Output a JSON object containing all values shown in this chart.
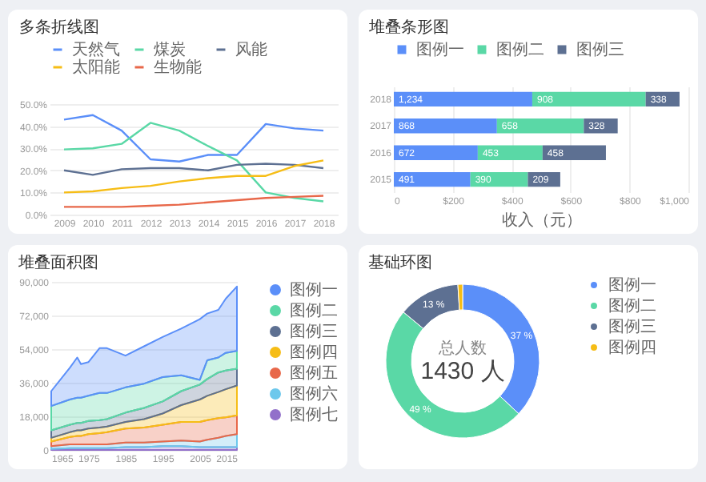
{
  "chart_data": [
    {
      "type": "line",
      "title": "多条折线图",
      "categories": [
        "2009",
        "2010",
        "2011",
        "2012",
        "2013",
        "2014",
        "2015",
        "2016",
        "2017",
        "2018"
      ],
      "series": [
        {
          "name": "天然气",
          "color": "#5b8ff9",
          "values": [
            43,
            45,
            38,
            25,
            24,
            27,
            27,
            41,
            39,
            38
          ]
        },
        {
          "name": "煤炭",
          "color": "#5ad8a6",
          "values": [
            29.5,
            30,
            32,
            41.5,
            38,
            31,
            24.5,
            10,
            7.5,
            6
          ]
        },
        {
          "name": "风能",
          "color": "#5d7092",
          "values": [
            20,
            18,
            20.5,
            21,
            21,
            20,
            22.5,
            23,
            22.5,
            21
          ]
        },
        {
          "name": "太阳能",
          "color": "#f6bd16",
          "values": [
            10,
            10.5,
            12,
            13,
            15,
            16.5,
            17.5,
            17.5,
            22,
            24.5
          ]
        },
        {
          "name": "生物能",
          "color": "#e8684a",
          "values": [
            3.5,
            3.5,
            3.5,
            4,
            4.5,
            5.5,
            6.5,
            7.5,
            8,
            8.5
          ]
        }
      ],
      "ylim": [
        0,
        50
      ],
      "yticks": [
        {
          "value": 0,
          "label": "0.0%"
        },
        {
          "value": 10,
          "label": "10.0%"
        },
        {
          "value": 20,
          "label": "20.0%"
        },
        {
          "value": 30,
          "label": "30.0%"
        },
        {
          "value": 40,
          "label": "40.0%"
        },
        {
          "value": 50,
          "label": "50.0%"
        }
      ],
      "grid": "y",
      "legend": "top",
      "marker": "none",
      "line_style": "solid"
    },
    {
      "type": "bar",
      "title": "堆叠条形图",
      "orientation": "horizontal",
      "stacked": true,
      "categories": [
        "2018",
        "2017",
        "2016",
        "2015"
      ],
      "series": [
        {
          "name": "图例一",
          "color": "#5b8ff9",
          "values": [
            470,
            350,
            285,
            260
          ]
        },
        {
          "name": "图例二",
          "color": "#5ad8a6",
          "values": [
            385,
            295,
            220,
            195
          ]
        },
        {
          "name": "图例三",
          "color": "#5d7092",
          "values": [
            115,
            115,
            215,
            110
          ]
        }
      ],
      "annotations": [
        {
          "text": "1,234",
          "x": 0,
          "y": "2018"
        },
        {
          "text": "908",
          "x": 470,
          "y": "2018"
        },
        {
          "text": "338",
          "x": 855,
          "y": "2018"
        },
        {
          "text": "868",
          "x": 0,
          "y": "2017"
        },
        {
          "text": "658",
          "x": 350,
          "y": "2017"
        },
        {
          "text": "328",
          "x": 645,
          "y": "2017"
        },
        {
          "text": "672",
          "x": 0,
          "y": "2016"
        },
        {
          "text": "453",
          "x": 285,
          "y": "2016"
        },
        {
          "text": "458",
          "x": 505,
          "y": "2016"
        },
        {
          "text": "491",
          "x": 0,
          "y": "2015"
        },
        {
          "text": "390",
          "x": 260,
          "y": "2015"
        },
        {
          "text": "209",
          "x": 455,
          "y": "2015"
        }
      ],
      "xlabel": "收入（元）",
      "xlim": [
        0,
        1000
      ],
      "xticks": [
        0,
        {
          "value": 200,
          "label": "$200"
        },
        {
          "value": 400,
          "label": "$400"
        },
        {
          "value": 600,
          "label": "$600"
        },
        {
          "value": 800,
          "label": "$800"
        },
        {
          "value": 1000,
          "label": "$1,000"
        }
      ],
      "grid": "x",
      "legend": "top"
    },
    {
      "type": "area",
      "title": "堆叠面积图",
      "stacked": true,
      "x": [
        1965,
        1970,
        1972,
        1973,
        1975,
        1978,
        1980,
        1985,
        1990,
        1995,
        2000,
        2005,
        2007,
        2010,
        2012,
        2015
      ],
      "series": [
        {
          "name": "图例七",
          "color": "#9270ca",
          "values": [
            500,
            1000,
            1000,
            1000,
            1000,
            1000,
            1000,
            1500,
            1500,
            2000,
            2000,
            1500,
            1500,
            1500,
            1500,
            1500
          ]
        },
        {
          "name": "图例六",
          "color": "#6dc8ec",
          "values": [
            1500,
            2000,
            2000,
            2000,
            2000,
            2000,
            2000,
            2500,
            2500,
            2500,
            3000,
            3000,
            4000,
            5000,
            6000,
            7000
          ]
        },
        {
          "name": "图例五",
          "color": "#e8684a",
          "values": [
            2500,
            4000,
            4500,
            4500,
            5500,
            6000,
            6500,
            7500,
            8000,
            9000,
            10000,
            10500,
            10500,
            10500,
            10000,
            10000
          ]
        },
        {
          "name": "图例四",
          "color": "#f6bd16",
          "values": [
            2000,
            2500,
            3000,
            3000,
            3000,
            3000,
            3000,
            3500,
            4500,
            6000,
            9000,
            12000,
            13000,
            14000,
            15000,
            16000
          ]
        },
        {
          "name": "图例三",
          "color": "#5d7092",
          "values": [
            4000,
            4000,
            4000,
            4000,
            4000,
            4000,
            4000,
            5000,
            6000,
            6500,
            7500,
            8000,
            9000,
            10500,
            10000,
            9000
          ]
        },
        {
          "name": "图例二",
          "color": "#5ad8a6",
          "values": [
            13000,
            13500,
            13500,
            13500,
            13500,
            14500,
            14000,
            13500,
            13000,
            13000,
            8500,
            2500,
            10000,
            8000,
            9500,
            9500
          ]
        },
        {
          "name": "图例一",
          "color": "#5b8ff9",
          "values": [
            8000,
            17000,
            21500,
            18000,
            18000,
            24000,
            24000,
            17000,
            20000,
            21500,
            25000,
            32500,
            25000,
            25500,
            29000,
            34500
          ]
        }
      ],
      "xlim": [
        1965,
        2015
      ],
      "xticks": [
        1965,
        1975,
        1985,
        1995,
        2005,
        2015
      ],
      "ylim": [
        0,
        90000
      ],
      "yticks": [
        0,
        {
          "value": 18000,
          "label": "18,000"
        },
        {
          "value": 36000,
          "label": "36,000"
        },
        {
          "value": 54000,
          "label": "54,000"
        },
        {
          "value": 72000,
          "label": "72,000"
        },
        {
          "value": 90000,
          "label": "90,000"
        }
      ],
      "grid": "y",
      "legend": "right"
    },
    {
      "type": "donut",
      "title": "基础环图",
      "categories": [
        "图例一",
        "图例二",
        "图例三",
        "图例四"
      ],
      "values": [
        37,
        49,
        13,
        1
      ],
      "colors": [
        "#5b8ff9",
        "#5ad8a6",
        "#5d7092",
        "#f6bd16"
      ],
      "value_labels": [
        "37 %",
        "49 %",
        "13 %",
        null
      ],
      "annotations": [
        "总人数",
        "1430 人"
      ],
      "legend": "right"
    }
  ]
}
